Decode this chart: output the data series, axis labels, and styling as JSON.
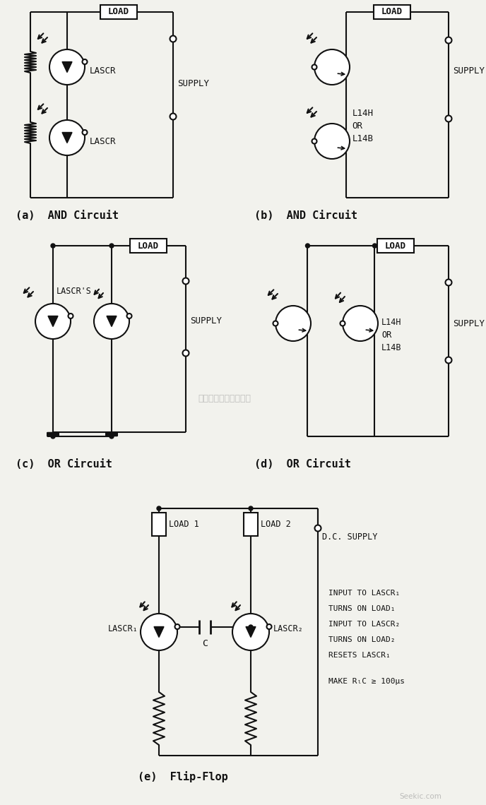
{
  "bg_color": "#f2f2ed",
  "lc": "#111111",
  "lw": 1.5,
  "panels": {
    "a_label": "(a)  AND Circuit",
    "b_label": "(b)  AND Circuit",
    "c_label": "(c)  OR Circuit",
    "d_label": "(d)  OR Circuit",
    "e_label": "(e)  Flip-Flop"
  },
  "text": {
    "lascr": "LASCR",
    "supply": "SUPPLY",
    "l14h": "L14H\nOR\nL14B",
    "lascrs": "LASCR'S",
    "load": "LOAD",
    "load1": "LOAD 1",
    "load2": "LOAD 2",
    "dc_supply": "D.C. SUPPLY",
    "cap": "C",
    "lascr1": "LASCR₁",
    "lascr2": "LASCR₂",
    "notes_line1": "INPUT TO LASCR₁",
    "notes_line2": "TURNS ON LOAD₁",
    "notes_line3": "INPUT TO LASCR₂",
    "notes_line4": "TURNS ON LOAD₂",
    "notes_line5": "RESETS LASCR₁",
    "make": "MAKE RₗC ≥ 100μs"
  },
  "watermark": "杭州将睿科技有限公司"
}
